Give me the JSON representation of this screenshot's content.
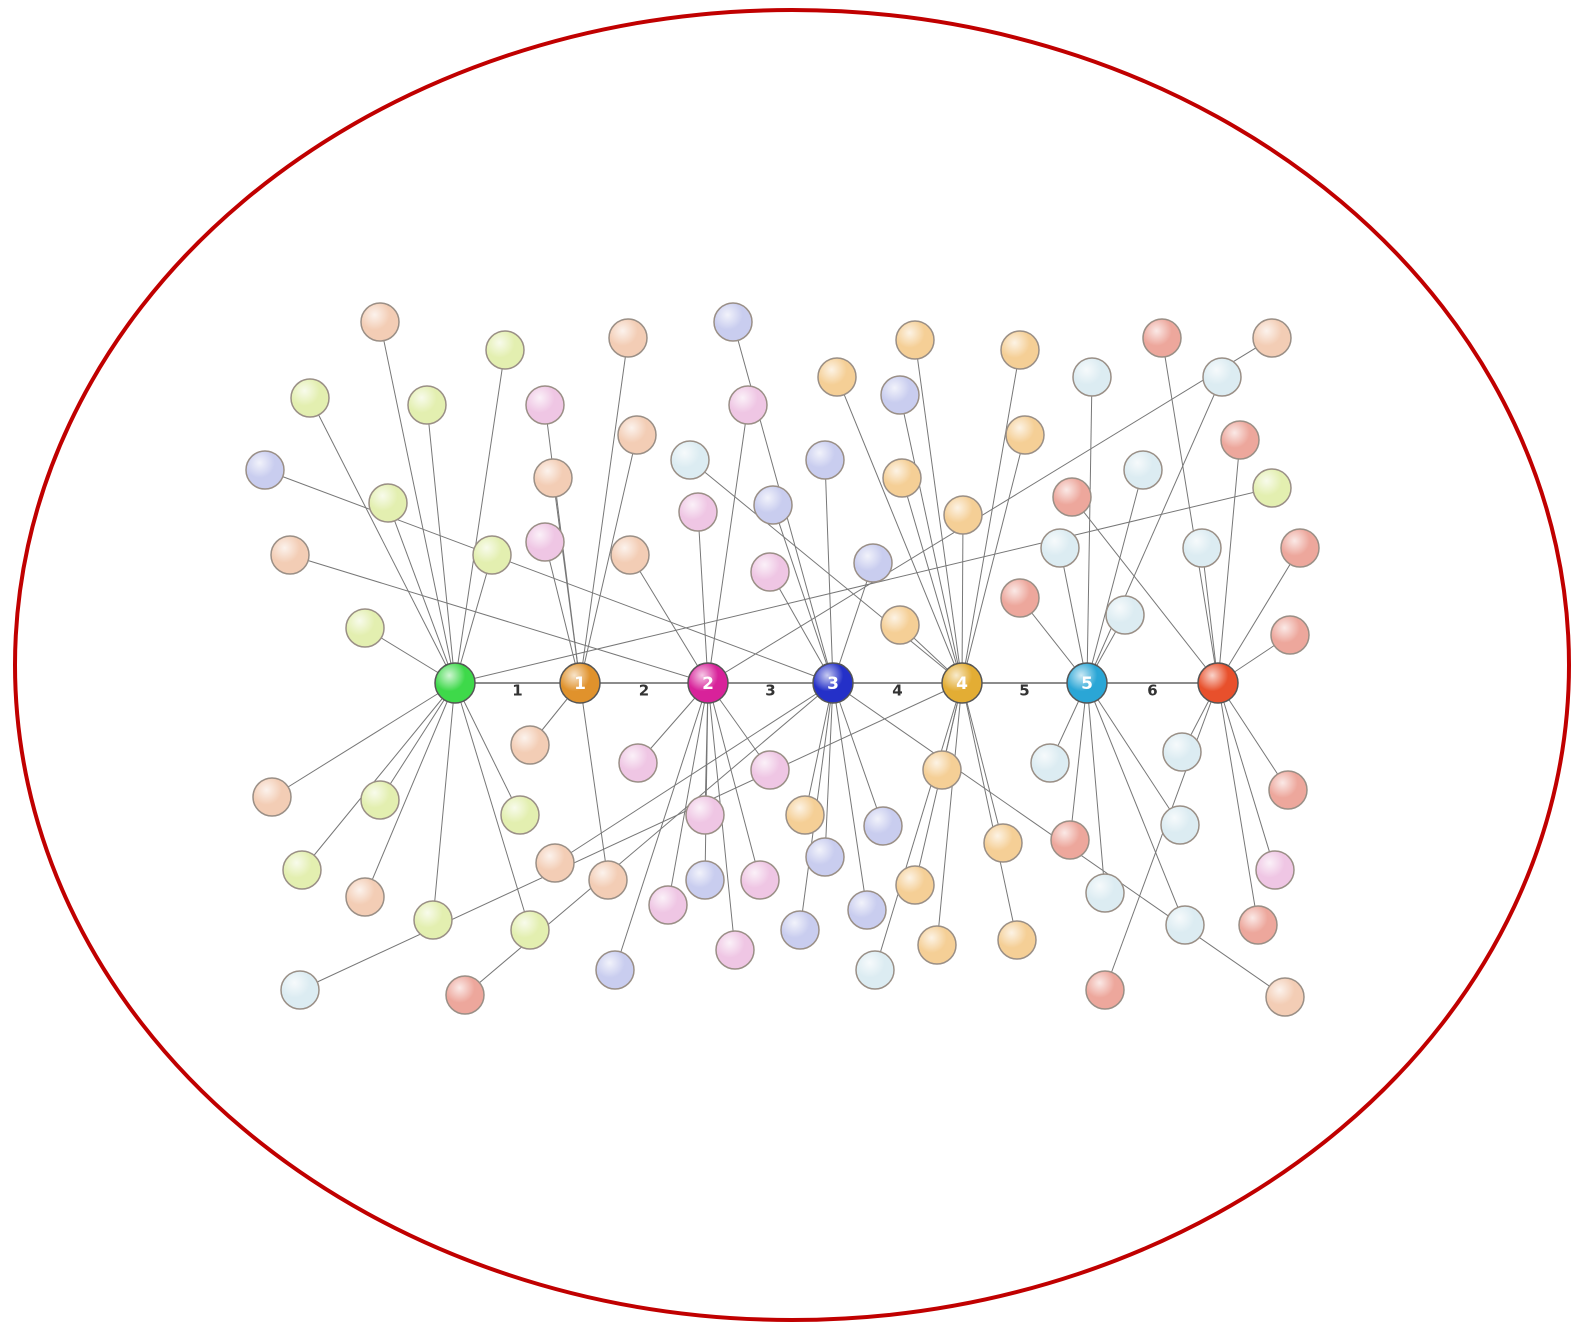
{
  "diagram": {
    "hub_labels": [
      "1",
      "2",
      "3",
      "4",
      "5"
    ],
    "edge_labels": [
      "1",
      "2",
      "3",
      "4",
      "5",
      "6"
    ]
  }
}
